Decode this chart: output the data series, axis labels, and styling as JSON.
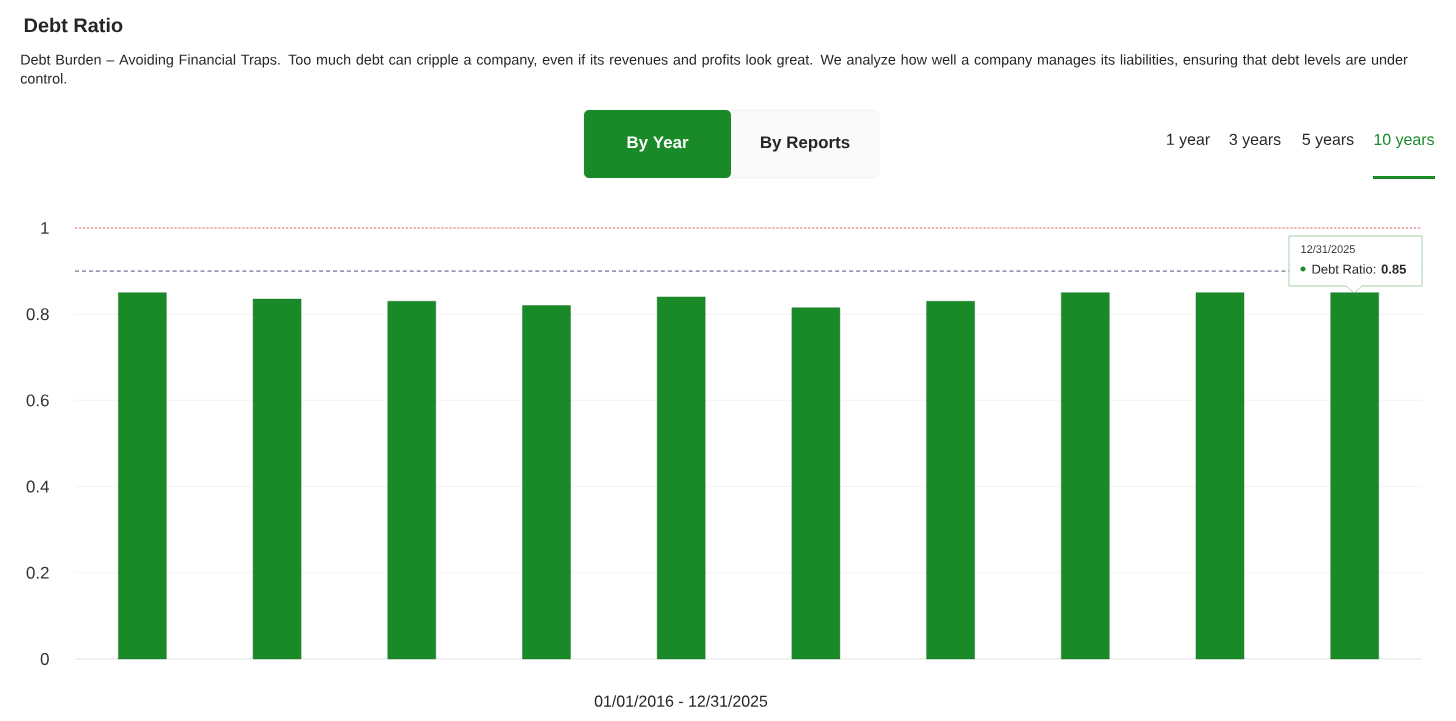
{
  "chart_data": {
    "type": "bar",
    "title": "Debt Ratio",
    "subtitle": "Debt Burden – Avoiding Financial Traps. Too much debt can cripple a company, even if its revenues and profits look great. We analyze how well a company manages its liabilities, ensuring that debt levels are under control.",
    "xlabel": "01/01/2016 - 12/31/2025",
    "categories": [
      null,
      null,
      null,
      null,
      null,
      null,
      null,
      null,
      null,
      null
    ],
    "values": [
      0.85,
      0.835,
      0.83,
      0.82,
      0.84,
      0.815,
      0.83,
      0.85,
      0.85,
      0.85
    ],
    "color": "#1a8a29",
    "ylim": [
      0,
      1
    ],
    "yticks": [
      0,
      0.2,
      0.4,
      0.6,
      0.8,
      1
    ],
    "grid": "y",
    "ref_lines": [
      {
        "axis": "y",
        "value": 1,
        "color": "#f0606a",
        "line_style": "dotted"
      },
      {
        "axis": "y",
        "value": 0.9,
        "color": "#4a4f7d",
        "line_style": "dashed"
      }
    ],
    "annotations": [
      "By Year",
      "By Reports",
      "1 year",
      "3 years",
      "5 years",
      "10 years",
      "12/31/2025",
      "Debt Ratio: **0.85**"
    ]
  }
}
